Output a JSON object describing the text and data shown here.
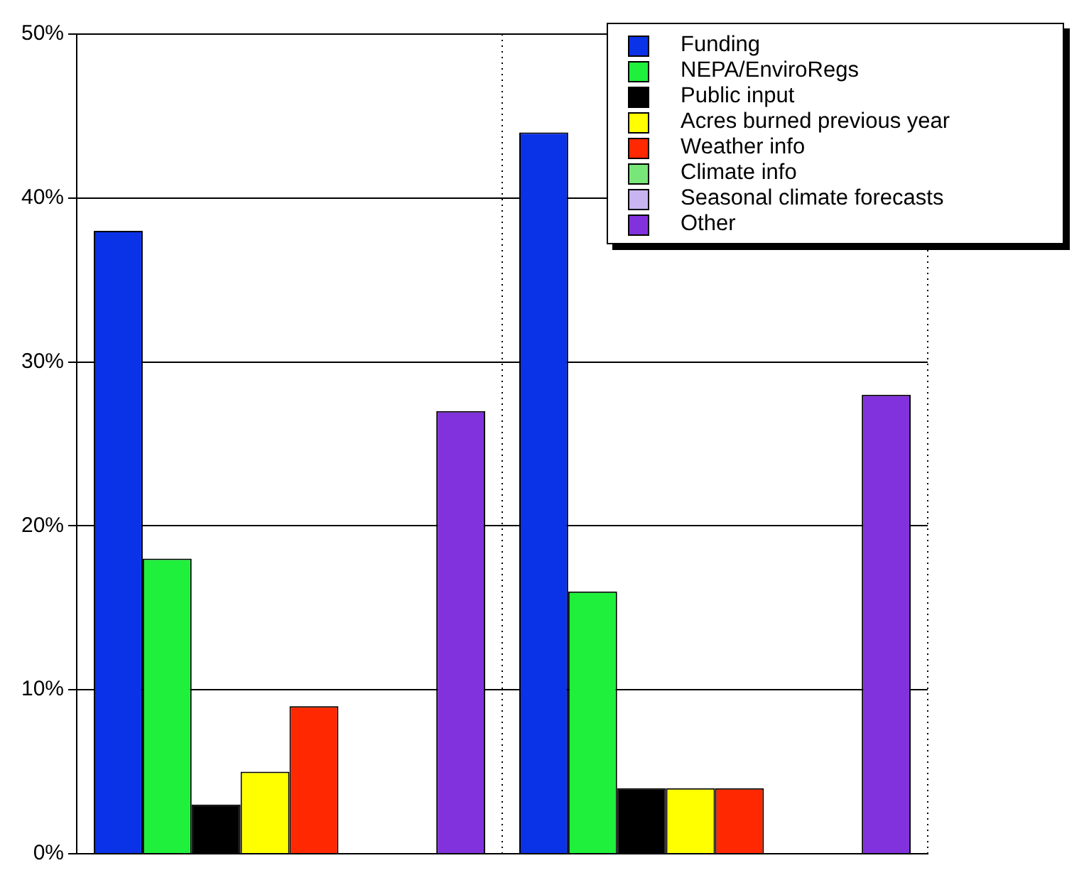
{
  "chart_data": {
    "type": "bar",
    "categories": [
      null,
      null
    ],
    "series": [
      {
        "name": "Funding",
        "color": "#0a32e6",
        "values": [
          38,
          44
        ]
      },
      {
        "name": "NEPA/EnviroRegs",
        "color": "#1ef03c",
        "values": [
          18,
          16
        ]
      },
      {
        "name": "Public input",
        "color": "#000000",
        "values": [
          3,
          4
        ]
      },
      {
        "name": "Acres burned previous year",
        "color": "#ffff00",
        "values": [
          5,
          4
        ]
      },
      {
        "name": "Weather info",
        "color": "#ff2800",
        "values": [
          9,
          4
        ]
      },
      {
        "name": "Climate info",
        "color": "#78e678",
        "values": [
          0,
          0
        ]
      },
      {
        "name": "Seasonal climate forecasts",
        "color": "#c8b4f0",
        "values": [
          0,
          0
        ]
      },
      {
        "name": "Other",
        "color": "#8232dc",
        "values": [
          27,
          28
        ]
      }
    ],
    "ylim": [
      0,
      50
    ],
    "yticks": [
      {
        "value": 0,
        "label": "0%"
      },
      {
        "value": 10,
        "label": "10%"
      },
      {
        "value": 20,
        "label": "20%"
      },
      {
        "value": 30,
        "label": "30%"
      },
      {
        "value": 40,
        "label": "40%"
      },
      {
        "value": 50,
        "label": "50%"
      }
    ],
    "grid": true,
    "legend": "top right"
  }
}
